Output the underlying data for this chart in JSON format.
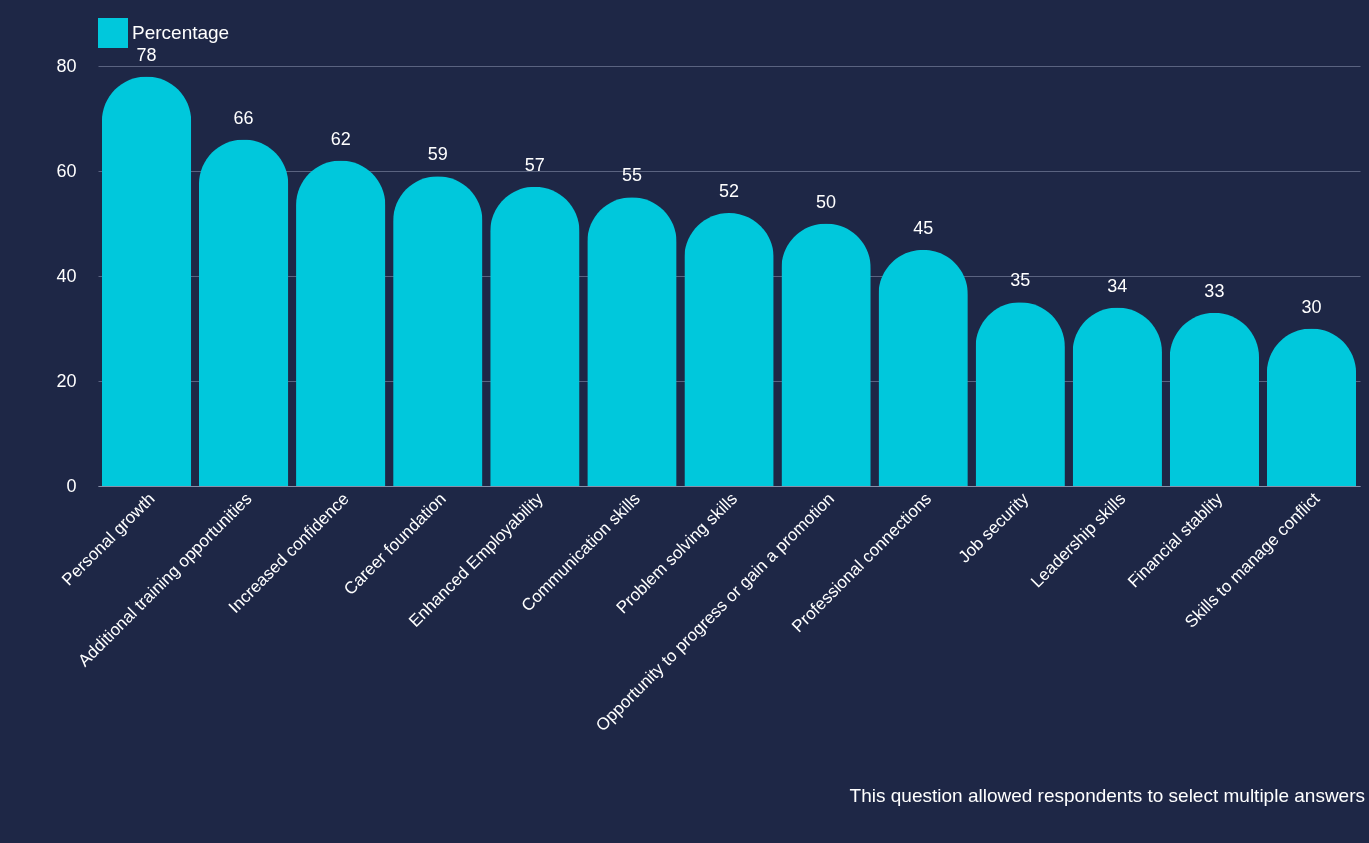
{
  "chart_data": {
    "type": "bar",
    "categories": [
      "Personal growth",
      "Additional training opportunities",
      "Increased confidence",
      "Career foundation",
      "Enhanced Employability",
      "Communication skills",
      "Problem solving skills",
      "Opportunity to progress or gain a promotion",
      "Professional connections",
      "Job security",
      "Leadership skills",
      "Financial stablity",
      "Skills to manage conflict"
    ],
    "series": [
      {
        "name": "Percentage",
        "color": "#00c8dc",
        "values": [
          78,
          66,
          62,
          59,
          57,
          55,
          52,
          50,
          45,
          35,
          34,
          33,
          30
        ]
      }
    ],
    "ylim": [
      0,
      80
    ],
    "yticks": [
      0,
      20,
      40,
      60,
      80
    ],
    "grid": "y",
    "legend": "top",
    "data_labels": true,
    "annotations": [
      "This question allowed respondents to select multiple answers"
    ]
  }
}
